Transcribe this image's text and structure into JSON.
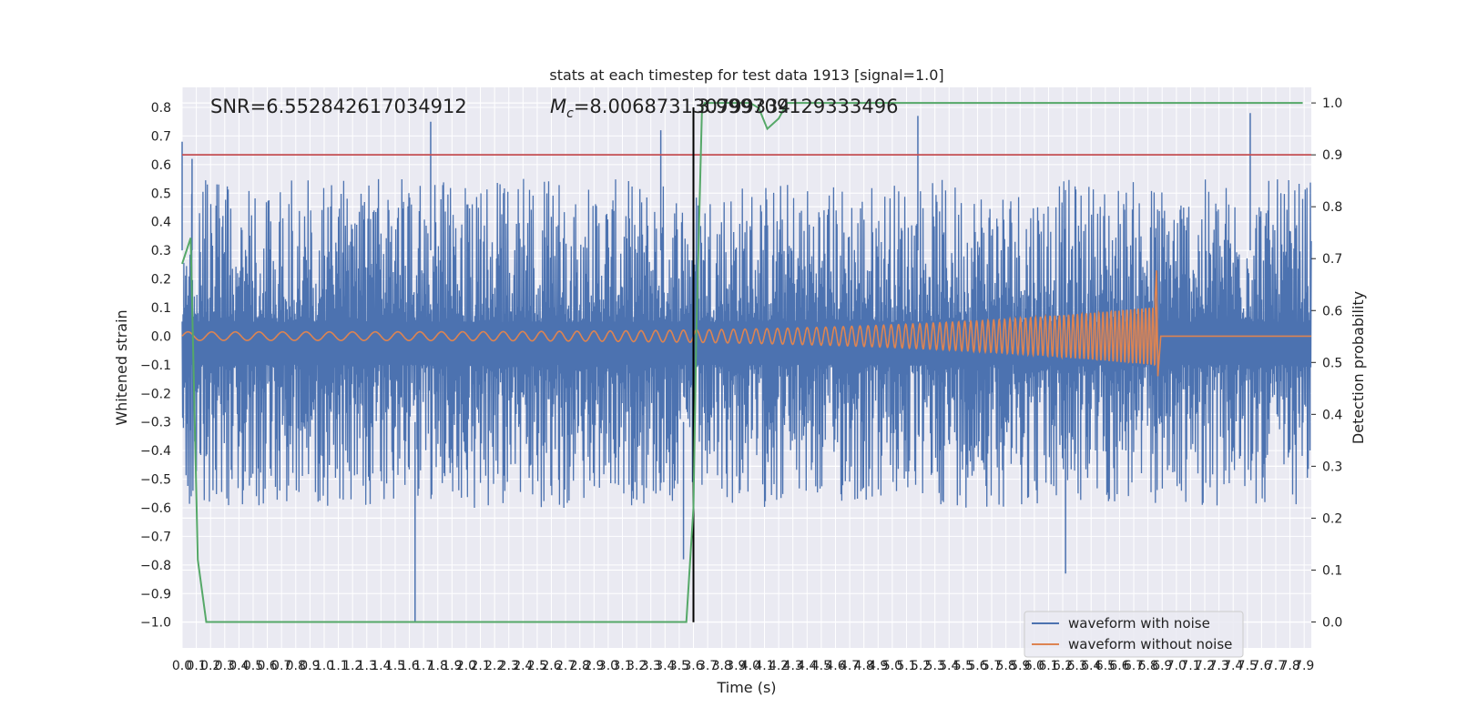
{
  "chart_data": {
    "type": "line",
    "title": "stats at each timestep for test data 1913 [signal=1.0]",
    "xlabel": "Time (s)",
    "ylabel": "Whitened strain",
    "y2label": "Detection probability",
    "xlim": [
      0.0,
      7.95
    ],
    "ylim": [
      -1.09,
      0.87
    ],
    "y2lim": [
      -0.05,
      1.03
    ],
    "grid": true,
    "legend_position": "lower-right",
    "x_ticks": [
      "0.0",
      "0.1",
      "0.2",
      "0.3",
      "0.4",
      "0.5",
      "0.6",
      "0.7",
      "0.8",
      "0.9",
      "1.0",
      "1.1",
      "1.2",
      "1.3",
      "1.4",
      "1.5",
      "1.6",
      "1.7",
      "1.8",
      "1.9",
      "2.0",
      "2.1",
      "2.2",
      "2.3",
      "2.4",
      "2.5",
      "2.6",
      "2.7",
      "2.8",
      "2.9",
      "3.0",
      "3.1",
      "3.2",
      "3.3",
      "3.4",
      "3.5",
      "3.6",
      "3.7",
      "3.8",
      "3.9",
      "4.0",
      "4.1",
      "4.2",
      "4.3",
      "4.4",
      "4.5",
      "4.6",
      "4.7",
      "4.8",
      "4.9",
      "5.0",
      "5.1",
      "5.2",
      "5.3",
      "5.4",
      "5.5",
      "5.6",
      "5.7",
      "5.8",
      "5.9",
      "6.0",
      "6.1",
      "6.2",
      "6.3",
      "6.4",
      "6.5",
      "6.6",
      "6.7",
      "6.8",
      "6.9",
      "7.0",
      "7.1",
      "7.2",
      "7.3",
      "7.4",
      "7.5",
      "7.6",
      "7.7",
      "7.8",
      "7.9"
    ],
    "y_ticks": [
      "0.8",
      "0.7",
      "0.6",
      "0.5",
      "0.4",
      "0.3",
      "0.2",
      "0.1",
      "0.0",
      "−0.1",
      "−0.2",
      "−0.3",
      "−0.4",
      "−0.5",
      "−0.6",
      "−0.7",
      "−0.8",
      "−0.9",
      "−1.0"
    ],
    "y2_ticks": [
      "1.0",
      "0.9",
      "0.8",
      "0.7",
      "0.6",
      "0.5",
      "0.4",
      "0.3",
      "0.2",
      "0.1",
      "0.0"
    ],
    "annotations": {
      "snr": "SNR=6.552842617034912",
      "mc_symbol": "M",
      "mc_subscript": "c",
      "mc_value": "=8.006873130799334",
      "overlap": "3.999709129333496"
    },
    "threshold_line": {
      "axis": "y2",
      "value": 0.9,
      "color": "#c44e52"
    },
    "marker_line": {
      "x": 3.6,
      "y_from": -1.0,
      "y_to": 0.8,
      "color": "#000000"
    },
    "series": [
      {
        "name": "waveform with noise",
        "axis": "y",
        "color": "#4c72b0",
        "kind": "noise",
        "upper_envelope_range": [
          0.05,
          0.55
        ],
        "lower_envelope_range": [
          -0.6,
          -0.1
        ],
        "spikes": [
          {
            "x": 0.0,
            "y": 0.68
          },
          {
            "x": 0.07,
            "y": 0.62
          },
          {
            "x": 1.64,
            "y": -1.0
          },
          {
            "x": 1.75,
            "y": 0.75
          },
          {
            "x": 3.37,
            "y": 0.72
          },
          {
            "x": 3.53,
            "y": -0.78
          },
          {
            "x": 5.18,
            "y": 0.77
          },
          {
            "x": 6.22,
            "y": -0.83
          },
          {
            "x": 7.52,
            "y": 0.78
          }
        ]
      },
      {
        "name": "waveform without noise",
        "axis": "y",
        "color": "#dd8452",
        "kind": "chirp",
        "start_x": 0.0,
        "merger_x": 6.87,
        "end_x": 7.95,
        "start_amplitude": 0.015,
        "peak_amplitude": 0.23,
        "trough_amplitude": -0.14,
        "start_frequency": 6.0,
        "end_frequency": 40.0
      },
      {
        "name": "detection probability",
        "axis": "y2",
        "color": "#55a868",
        "kind": "line",
        "x": [
          0.0,
          0.06,
          0.11,
          0.17,
          0.25,
          0.5,
          1.0,
          2.0,
          3.0,
          3.55,
          3.6,
          3.62,
          3.66,
          3.68,
          3.72,
          3.8,
          4.0,
          4.06,
          4.12,
          4.2,
          4.26,
          7.89
        ],
        "y": [
          0.69,
          0.74,
          0.12,
          0.0,
          0.0,
          0.0,
          0.0,
          0.0,
          0.0,
          0.0,
          0.22,
          0.55,
          0.99,
          1.0,
          1.0,
          1.0,
          1.0,
          0.99,
          0.95,
          0.97,
          1.0,
          1.0
        ]
      }
    ],
    "legend": [
      {
        "label": "waveform with noise",
        "color": "#4c72b0"
      },
      {
        "label": "waveform without noise",
        "color": "#dd8452"
      }
    ]
  }
}
